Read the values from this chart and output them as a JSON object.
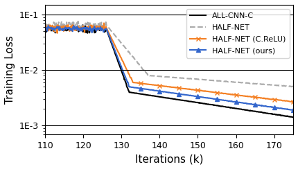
{
  "title": "",
  "xlabel": "Iterations (k)",
  "ylabel": "Training Loss",
  "xlim": [
    110,
    175
  ],
  "ylim_log": [
    -3,
    -1
  ],
  "legend_labels": [
    "ALL-CNN-C",
    "HALF-NET",
    "HALF-NET (C.ReLU)",
    "HALF-NET (ours)"
  ],
  "colors": [
    "#000000",
    "#aaaaaa",
    "#f48024",
    "#3366cc"
  ],
  "background_color": "#ffffff",
  "xticks": [
    110,
    120,
    130,
    140,
    150,
    160,
    170
  ],
  "marker_interval": 5,
  "seed": 42
}
